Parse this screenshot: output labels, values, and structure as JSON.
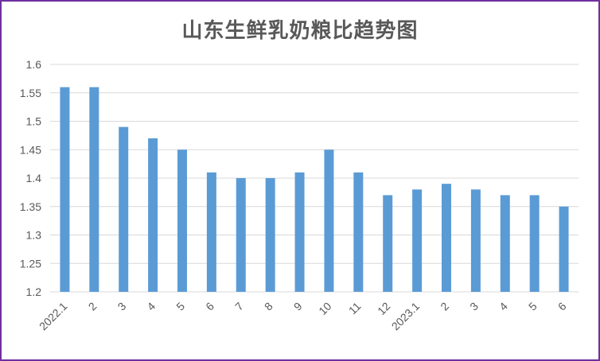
{
  "chart_data": {
    "type": "bar",
    "title": "山东生鲜乳奶粮比趋势图",
    "xlabel": "",
    "ylabel": "",
    "categories": [
      "2022.1",
      "2",
      "3",
      "4",
      "5",
      "6",
      "7",
      "8",
      "9",
      "10",
      "11",
      "12",
      "2023.1",
      "2",
      "3",
      "4",
      "5",
      "6"
    ],
    "series": [
      {
        "values": [
          1.56,
          1.56,
          1.49,
          1.47,
          1.45,
          1.41,
          1.4,
          1.4,
          1.41,
          1.45,
          1.41,
          1.37,
          1.38,
          1.39,
          1.38,
          1.37,
          1.37,
          1.35
        ]
      }
    ],
    "ylim": [
      1.2,
      1.6
    ],
    "yticks": [
      "1.2",
      "1.25",
      "1.3",
      "1.35",
      "1.4",
      "1.45",
      "1.5",
      "1.55",
      "1.6"
    ],
    "grid": true,
    "legend": "none",
    "colors": {
      "bar": "#5b9bd5",
      "grid": "#d9d9d9",
      "border": "#7030a0",
      "text": "#595959"
    }
  }
}
